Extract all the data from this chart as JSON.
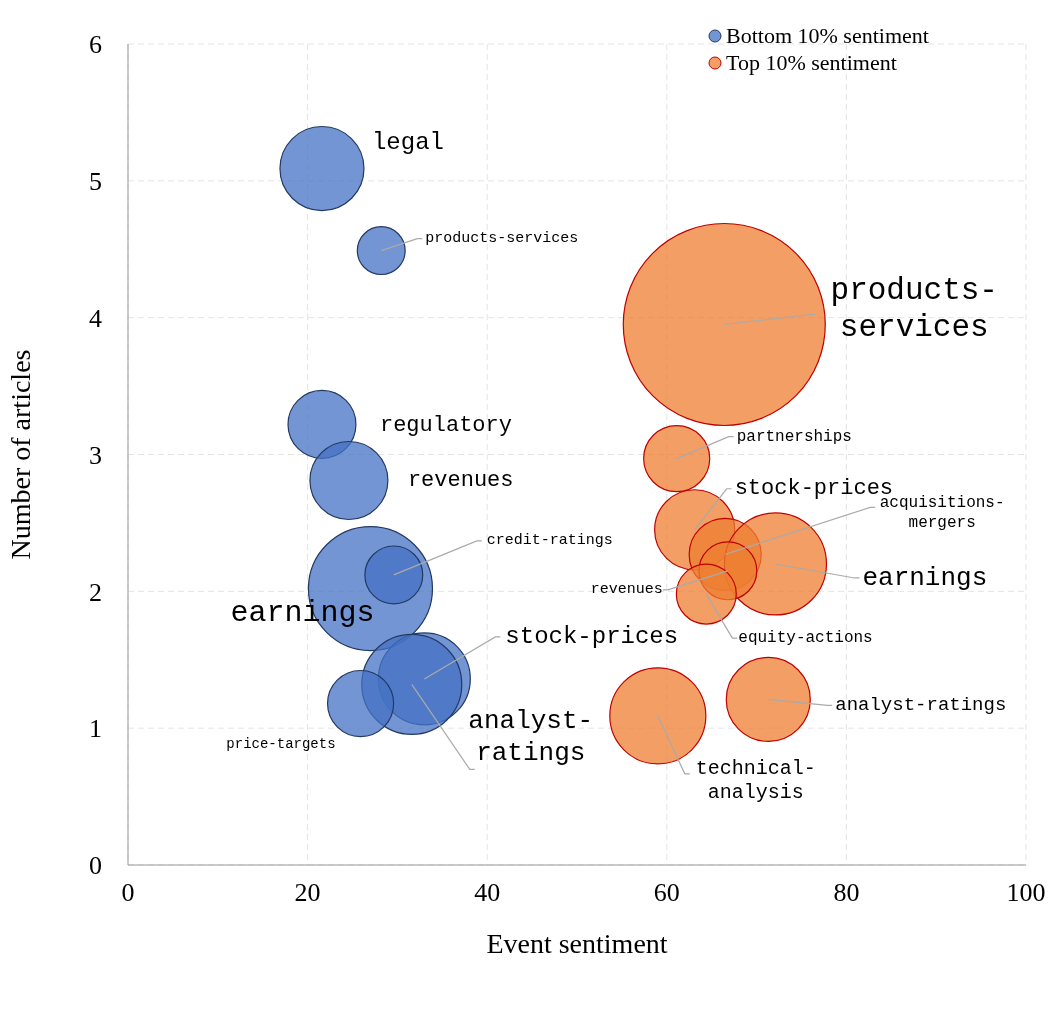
{
  "chart_data": {
    "type": "bubble",
    "xlabel": "Event sentiment",
    "ylabel": "Number of articles",
    "xlim": [
      0,
      100
    ],
    "xticks": [
      0,
      20,
      40,
      60,
      80,
      100
    ],
    "ylim": [
      0,
      6
    ],
    "yticks": [
      0,
      1,
      2,
      3,
      4,
      5,
      6
    ],
    "grid": true,
    "legend": "top right",
    "series": [
      {
        "name": "Bottom 10% sentiment",
        "color": "#4472c4",
        "x": [
          21.6,
          28.2,
          21.6,
          24.6,
          27.0,
          29.6,
          33.0,
          31.6,
          25.9
        ],
        "values": [
          5.09,
          4.49,
          3.22,
          2.81,
          2.02,
          2.12,
          1.36,
          1.32,
          1.18
        ],
        "sizes": [
          0.173,
          0.056,
          0.113,
          0.149,
          0.377,
          0.082,
          0.207,
          0.245,
          0.107
        ]
      },
      {
        "name": "Top 10% sentiment",
        "color": "#ed7d31",
        "x": [
          66.4,
          61.1,
          63.1,
          66.5,
          72.1,
          66.8,
          64.4,
          71.3,
          59.0
        ],
        "values": [
          3.95,
          2.97,
          2.45,
          2.27,
          2.2,
          2.15,
          1.98,
          1.21,
          1.09
        ],
        "sizes": [
          1,
          0.107,
          0.157,
          0.127,
          0.255,
          0.082,
          0.088,
          0.173,
          0.226
        ]
      }
    ],
    "annotations": [
      {
        "text": "legal",
        "x": 21.6,
        "y": 5.09
      },
      {
        "text": "products-services",
        "x": 28.2,
        "y": 4.49
      },
      {
        "text": "regulatory",
        "x": 21.6,
        "y": 3.22
      },
      {
        "text": "revenues",
        "x": 24.6,
        "y": 2.81
      },
      {
        "text": "earnings",
        "x": 27.0,
        "y": 2.02
      },
      {
        "text": "credit-ratings",
        "x": 29.6,
        "y": 2.12
      },
      {
        "text": "stock-prices",
        "x": 33.0,
        "y": 1.36
      },
      {
        "text": "analyst-ratings",
        "x": 31.6,
        "y": 1.32
      },
      {
        "text": "price-targets",
        "x": 25.9,
        "y": 1.18
      },
      {
        "text": "products-services",
        "x": 66.4,
        "y": 3.95
      },
      {
        "text": "partnerships",
        "x": 61.1,
        "y": 2.97
      },
      {
        "text": "stock-prices",
        "x": 63.1,
        "y": 2.45
      },
      {
        "text": "acquisitions-mergers",
        "x": 66.5,
        "y": 2.27
      },
      {
        "text": "earnings",
        "x": 72.1,
        "y": 2.2
      },
      {
        "text": "revenues",
        "x": 66.8,
        "y": 2.15
      },
      {
        "text": "equity-actions",
        "x": 64.4,
        "y": 1.98
      },
      {
        "text": "analyst-ratings",
        "x": 71.3,
        "y": 1.21
      },
      {
        "text": "technical-analysis",
        "x": 59.0,
        "y": 1.09
      }
    ]
  }
}
